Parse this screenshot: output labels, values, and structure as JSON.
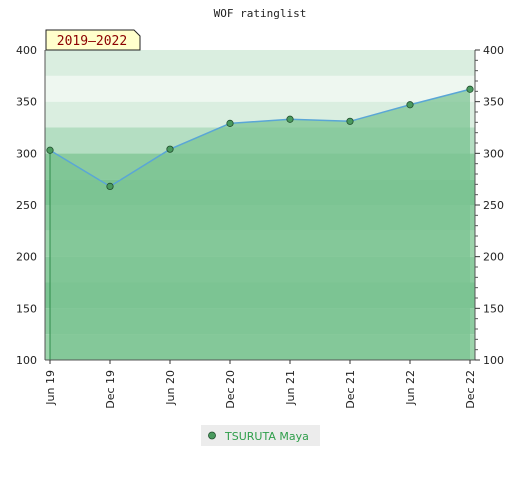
{
  "chart_data": {
    "type": "area",
    "title": "WOF ratinglist",
    "period_label": "2019–2022",
    "categories": [
      "Jun 19",
      "Dec 19",
      "Jun 20",
      "Dec 20",
      "Jun 21",
      "Dec 21",
      "Jun 22",
      "Dec 22"
    ],
    "series": [
      {
        "name": "TSURUTA Maya",
        "values": [
          303,
          268,
          304,
          329,
          333,
          331,
          347,
          362
        ]
      }
    ],
    "ylim": [
      100,
      400
    ],
    "yticks": [
      100,
      150,
      200,
      250,
      300,
      350,
      400
    ],
    "grid": true,
    "legend_position": "bottom-center",
    "colors": {
      "line": "#5aa6d6",
      "area": "#7cc493",
      "marker": "#4a9a5e",
      "legend_text": "#2e9e4a",
      "badge_bg": "#ffffcc",
      "badge_text": "#8b0000"
    }
  }
}
